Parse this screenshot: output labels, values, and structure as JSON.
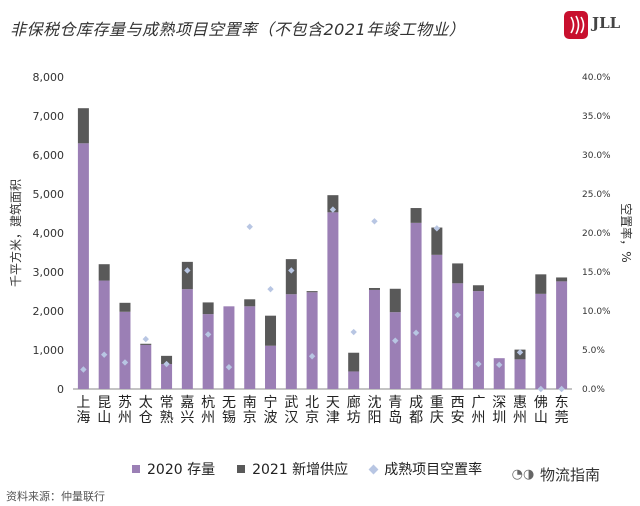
{
  "title": "非保税仓库存量与成熟项目空置率（不包含2021年竣工物业）",
  "brand": {
    "text": "JLL",
    "color": "#c8102e"
  },
  "source": "资料来源：仲量联行",
  "watermark": "物流指南",
  "colors": {
    "stock2020": "#9b7fb5",
    "supply2021": "#595959",
    "vacancy": "#b8c6e3"
  },
  "chart_data": {
    "type": "bar",
    "stacked": true,
    "categories": [
      "上海",
      "昆山",
      "苏州",
      "太仓",
      "常熟",
      "嘉兴",
      "杭州",
      "无锡",
      "南京",
      "宁波",
      "武汉",
      "北京",
      "天津",
      "廊坊",
      "沈阳",
      "青岛",
      "成都",
      "重庆",
      "西安",
      "广州",
      "深圳",
      "惠州",
      "佛山",
      "东莞"
    ],
    "series": [
      {
        "name": "2020 存量",
        "type": "bar",
        "axis": "left",
        "values": [
          6300,
          2780,
          1980,
          1130,
          640,
          2560,
          1920,
          2120,
          2120,
          1110,
          2430,
          2480,
          4530,
          450,
          2540,
          1970,
          4260,
          3440,
          2710,
          2510,
          790,
          760,
          2440,
          2760
        ]
      },
      {
        "name": "2021 新增供应",
        "type": "bar",
        "axis": "left",
        "values": [
          900,
          420,
          230,
          30,
          210,
          700,
          300,
          0,
          180,
          770,
          900,
          30,
          440,
          480,
          50,
          600,
          380,
          700,
          510,
          150,
          0,
          250,
          500,
          100
        ]
      },
      {
        "name": "成熟项目空置率",
        "type": "scatter",
        "axis": "right",
        "values": [
          2.5,
          4.4,
          3.4,
          6.4,
          3.2,
          15.2,
          7.0,
          2.8,
          20.8,
          12.8,
          15.2,
          4.2,
          23.0,
          7.3,
          21.5,
          6.2,
          7.2,
          20.6,
          9.5,
          3.2,
          3.1,
          4.7,
          0.0,
          0.0
        ]
      }
    ],
    "ylabel": "千平方米，建筑面积",
    "ylabel_right": "空置率，%",
    "ylim": [
      0,
      8000
    ],
    "yticks": [
      "0",
      "1,000",
      "2,000",
      "3,000",
      "4,000",
      "5,000",
      "6,000",
      "7,000",
      "8,000"
    ],
    "ylim_right": [
      0,
      40
    ],
    "yticks_right": [
      "0.0%",
      "5.0%",
      "10.0%",
      "15.0%",
      "20.0%",
      "25.0%",
      "30.0%",
      "35.0%",
      "40.0%"
    ],
    "grid": false,
    "legend_position": "bottom"
  }
}
